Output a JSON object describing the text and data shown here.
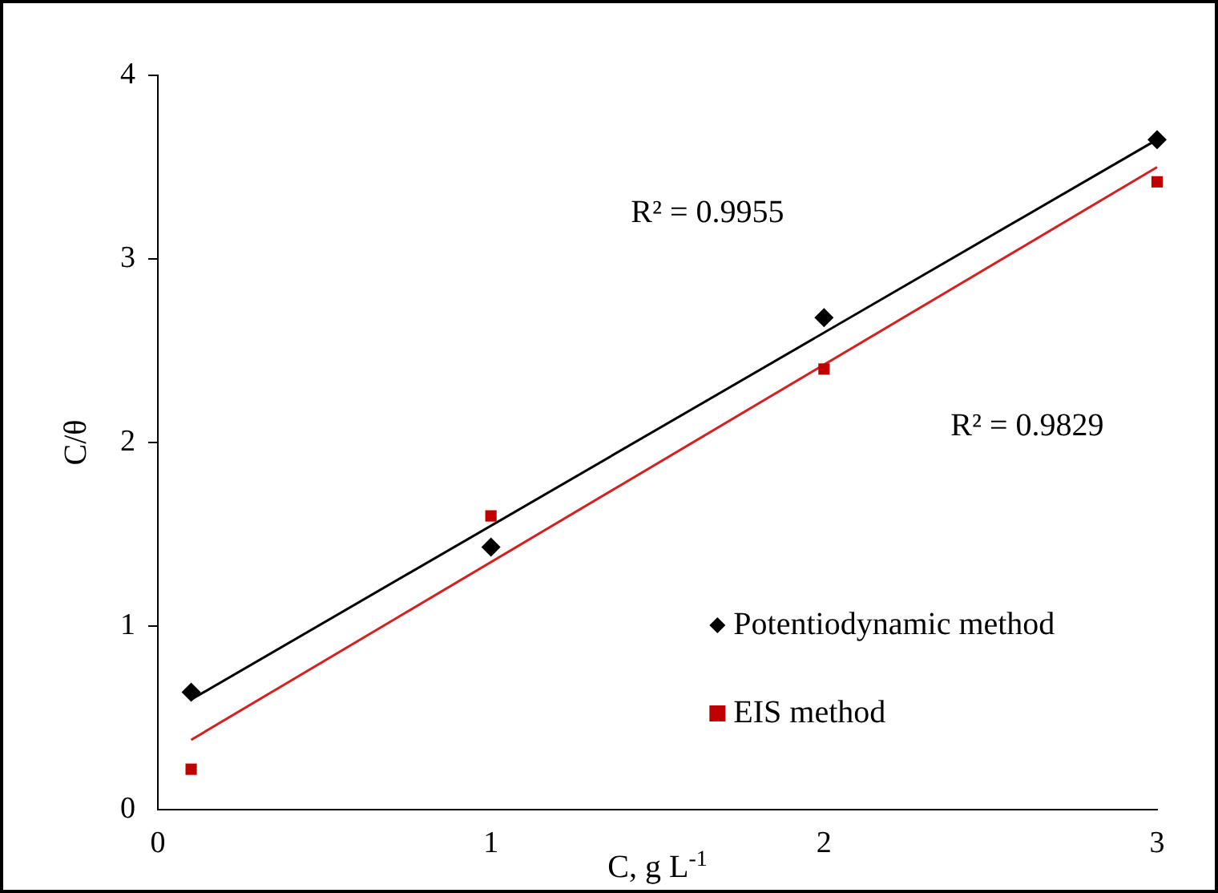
{
  "chart_data": {
    "type": "scatter",
    "xlabel": "C, g L$^{-1}$",
    "ylabel": "C/θ",
    "xlim": [
      0,
      3
    ],
    "ylim": [
      0,
      4
    ],
    "xticks": [
      0,
      1,
      2,
      3
    ],
    "yticks": [
      0,
      1,
      2,
      3,
      4
    ],
    "grid": false,
    "legend": "bottom right",
    "series": [
      {
        "name": "Potentiodynamic method",
        "color": "#000000",
        "marker": "diamond",
        "x": [
          0.1,
          1,
          2,
          3
        ],
        "values": [
          0.64,
          1.43,
          2.68,
          3.65
        ]
      },
      {
        "name": "EIS method",
        "color": "#c00000",
        "marker": "square",
        "x": [
          0.1,
          1,
          2,
          3
        ],
        "values": [
          0.22,
          1.6,
          2.4,
          3.42
        ]
      },
      {
        "type": "line",
        "color": "#000000",
        "marker": "none",
        "x": [
          0.1,
          3
        ],
        "values": [
          0.6,
          3.65
        ]
      },
      {
        "type": "line",
        "color": "#d42020",
        "marker": "none",
        "x": [
          0.1,
          3
        ],
        "values": [
          0.38,
          3.5
        ]
      }
    ],
    "annotations": [
      "R² = 0.9955",
      "R² = 0.9829"
    ]
  }
}
